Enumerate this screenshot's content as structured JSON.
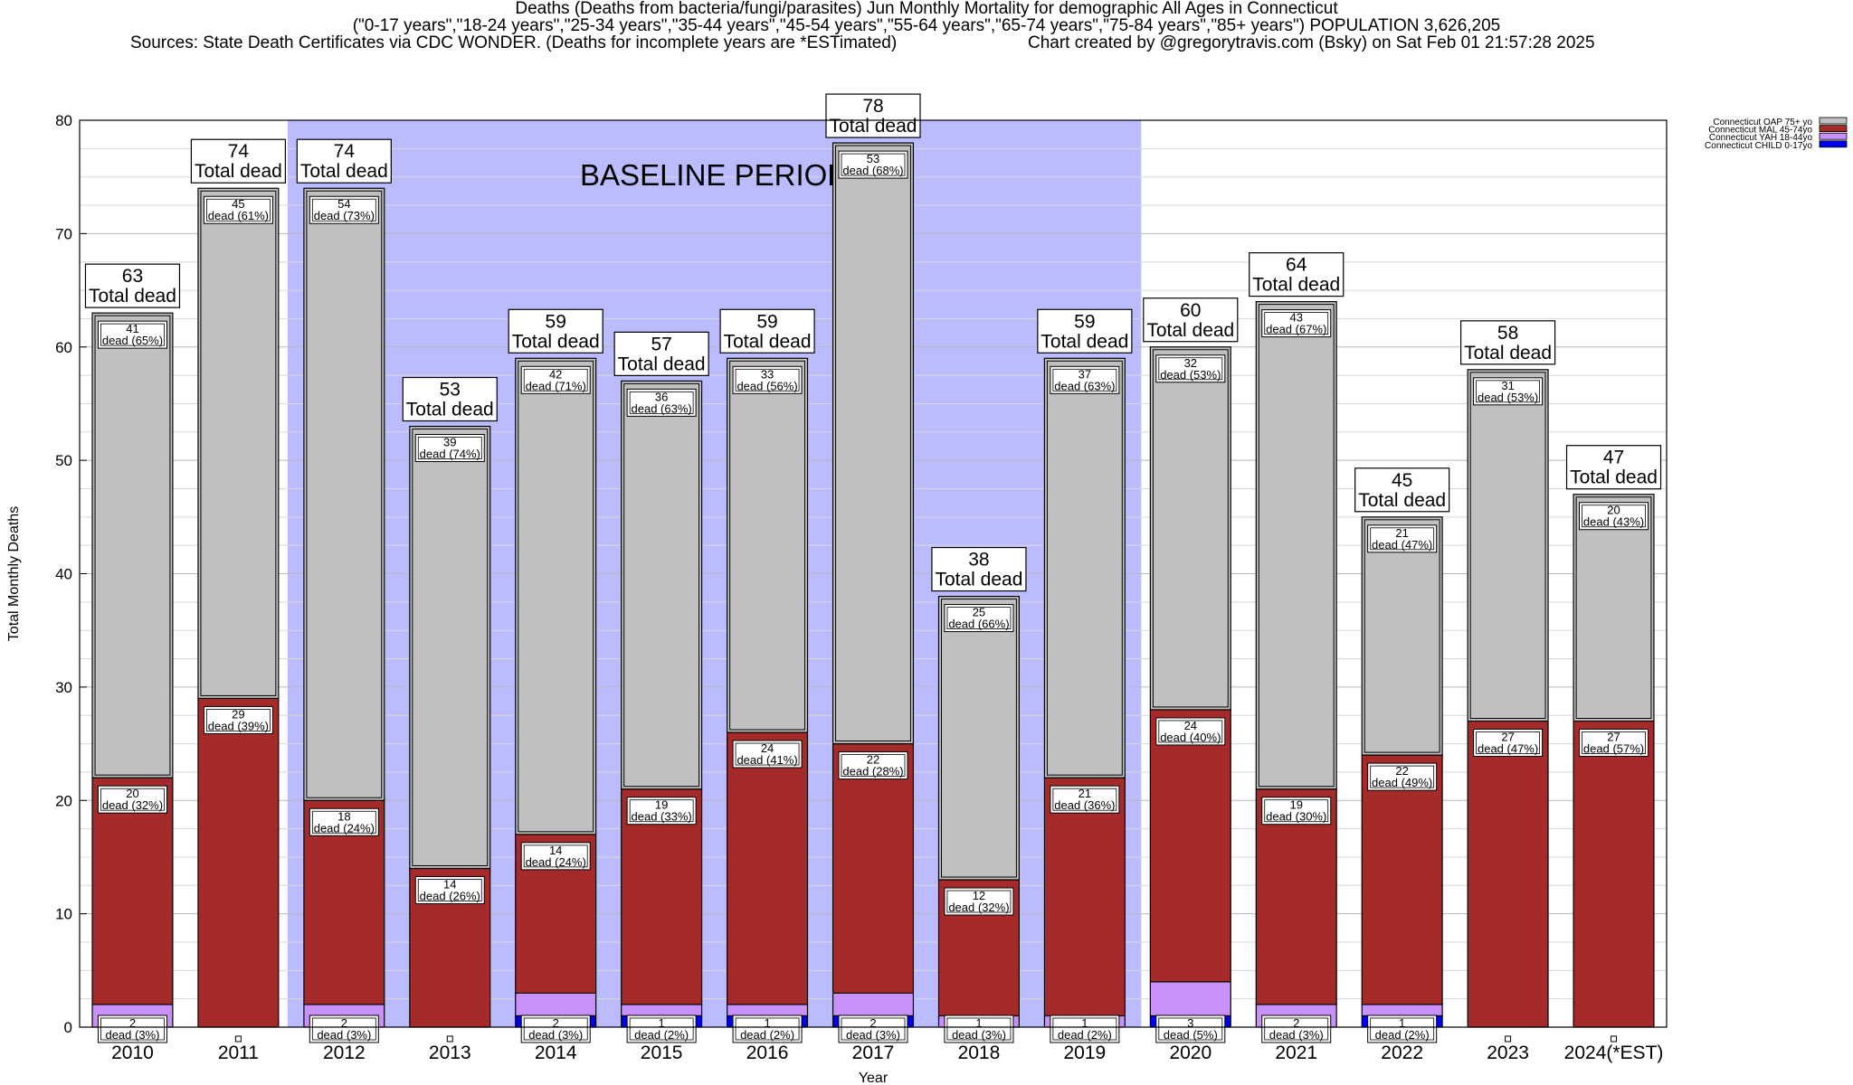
{
  "header": {
    "title_line1": "Deaths (Deaths from bacteria/fungi/parasites) Jun Monthly Mortality for demographic All Ages in Connecticut",
    "title_line2": "(\"0-17 years\",\"18-24 years\",\"25-34 years\",\"35-44 years\",\"45-54 years\",\"55-64 years\",\"65-74 years\",\"75-84 years\",\"85+ years\") POPULATION 3,626,205",
    "sources": "Sources: State Death Certificates via CDC WONDER. (Deaths for incomplete years are *ESTimated)",
    "credit": "Chart created by @gregorytravis.com (Bsky) on Sat Feb 01 21:57:28 2025"
  },
  "chart_data": {
    "type": "bar",
    "stacked": true,
    "xlabel": "Year",
    "ylabel": "Total Monthly Deaths",
    "ylim": [
      0,
      80
    ],
    "yticks": [
      0,
      10,
      20,
      30,
      40,
      50,
      60,
      70,
      80
    ],
    "grid": true,
    "legend_position": "top-right",
    "baseline_label": "BASELINE PERIOD",
    "baseline_range": [
      "2012",
      "2019"
    ],
    "baseline_color": "#bbbbff",
    "total_label": "Total dead",
    "dead_word": "dead",
    "categories": [
      "2010",
      "2011",
      "2012",
      "2013",
      "2014",
      "2015",
      "2016",
      "2017",
      "2018",
      "2019",
      "2020",
      "2021",
      "2022",
      "2023",
      "2024(*EST)"
    ],
    "totals": [
      63,
      74,
      74,
      53,
      59,
      57,
      59,
      78,
      38,
      59,
      60,
      64,
      45,
      58,
      47
    ],
    "series": [
      {
        "name": "Connecticut CHILD 0-17yo",
        "color": "#0000ee",
        "values": [
          0,
          0,
          0,
          0,
          1,
          1,
          1,
          1,
          0,
          0,
          1,
          0,
          1,
          0,
          0
        ]
      },
      {
        "name": "Connecticut YAH 18-44yo",
        "color": "#c890f8",
        "values": [
          2,
          0,
          2,
          0,
          2,
          1,
          1,
          2,
          1,
          1,
          3,
          2,
          1,
          0,
          0
        ]
      },
      {
        "name": "Connecticut MAL 45-74yo",
        "color": "#a52a2a",
        "values": [
          20,
          29,
          18,
          14,
          14,
          19,
          24,
          22,
          12,
          21,
          24,
          19,
          22,
          27,
          27
        ]
      },
      {
        "name": "Connecticut OAP 75+ yo",
        "color": "#c0c0c0",
        "values": [
          41,
          45,
          54,
          39,
          42,
          36,
          33,
          53,
          25,
          37,
          32,
          43,
          21,
          31,
          20
        ]
      }
    ],
    "segment_labels": {
      "Connecticut YAH 18-44yo": [
        "2|dead (3%)",
        null,
        "2|dead (3%)",
        null,
        "2|dead (3%)",
        "1|dead (2%)",
        "1|dead (2%)",
        "2|dead (3%)",
        "1|dead (3%)",
        "1|dead (2%)",
        "3|dead (5%)",
        "2|dead (3%)",
        "1|dead (2%)",
        null,
        null
      ],
      "Connecticut MAL 45-74yo": [
        "20|dead (32%)",
        "29|dead (39%)",
        "18|dead (24%)",
        "14|dead (26%)",
        "14|dead (24%)",
        "19|dead (33%)",
        "24|dead (41%)",
        "22|dead (28%)",
        "12|dead (32%)",
        "21|dead (36%)",
        "24|dead (40%)",
        "19|dead (30%)",
        "22|dead (49%)",
        "27|dead (47%)",
        "27|dead (57%)"
      ],
      "Connecticut OAP 75+ yo": [
        "41|dead (65%)",
        "45|dead (61%)",
        "54|dead (73%)",
        "39|dead (74%)",
        "42|dead (71%)",
        "36|dead (63%)",
        "33|dead (56%)",
        "53|dead (68%)",
        "25|dead (66%)",
        "37|dead (63%)",
        "32|dead (53%)",
        "43|dead (67%)",
        "21|dead (47%)",
        "31|dead (53%)",
        "20|dead (43%)"
      ]
    }
  }
}
